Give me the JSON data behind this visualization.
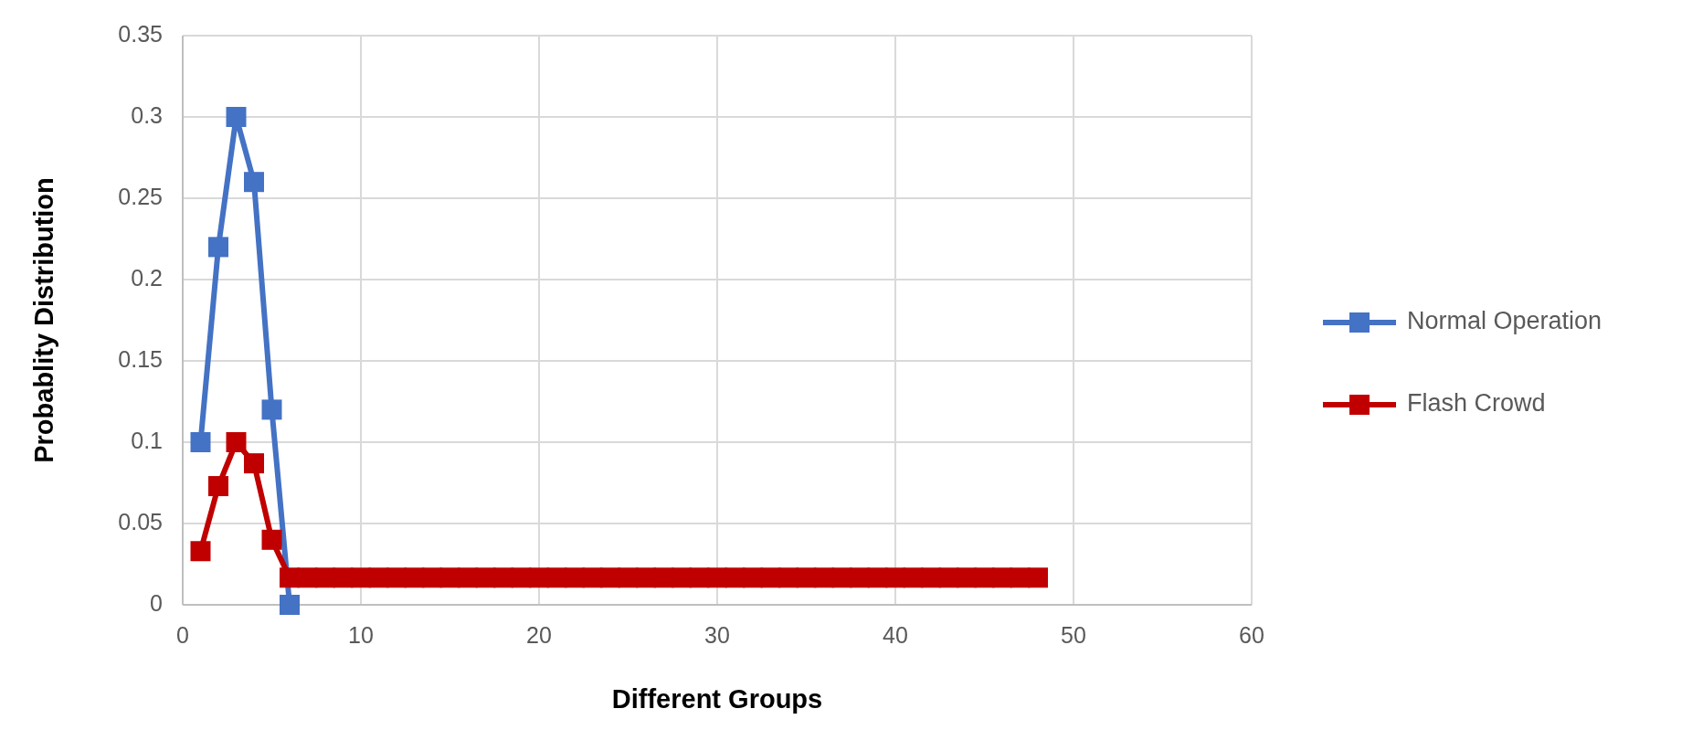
{
  "chart_data": {
    "type": "line",
    "xlabel": "Different Groups",
    "ylabel": "Probablity Distribution",
    "xlim": [
      0,
      60
    ],
    "xticks": [
      0,
      10,
      20,
      30,
      40,
      50,
      60
    ],
    "ylim": [
      0,
      0.35
    ],
    "yticks": [
      0,
      0.05,
      0.1,
      0.15,
      0.2,
      0.25,
      0.3,
      0.35
    ],
    "grid": true,
    "legend": "right",
    "marker": "square",
    "line_style": "solid",
    "series": [
      {
        "name": "Normal Operation",
        "color": "#4472c4",
        "x": [
          1,
          2,
          3,
          4,
          5,
          6
        ],
        "values": [
          0.1,
          0.22,
          0.3,
          0.26,
          0.12,
          0
        ]
      },
      {
        "name": "Flash Crowd",
        "color": "#c00000",
        "x": [
          1,
          2,
          3,
          4,
          5,
          6,
          7,
          8,
          9,
          10,
          11,
          12,
          13,
          14,
          15,
          16,
          17,
          18,
          19,
          20,
          21,
          22,
          23,
          24,
          25,
          26,
          27,
          28,
          29,
          30,
          31,
          32,
          33,
          34,
          35,
          36,
          37,
          38,
          39,
          40,
          41,
          42,
          43,
          44,
          45,
          46,
          47,
          48
        ],
        "values": [
          0.033,
          0.073,
          0.1,
          0.087,
          0.04,
          0.0167,
          0.0167,
          0.0167,
          0.0167,
          0.0167,
          0.0167,
          0.0167,
          0.0167,
          0.0167,
          0.0167,
          0.0167,
          0.0167,
          0.0167,
          0.0167,
          0.0167,
          0.0167,
          0.0167,
          0.0167,
          0.0167,
          0.0167,
          0.0167,
          0.0167,
          0.0167,
          0.0167,
          0.0167,
          0.0167,
          0.0167,
          0.0167,
          0.0167,
          0.0167,
          0.0167,
          0.0167,
          0.0167,
          0.0167,
          0.0167,
          0.0167,
          0.0167,
          0.0167,
          0.0167,
          0.0167,
          0.0167,
          0.0167,
          0.0167
        ]
      }
    ]
  }
}
